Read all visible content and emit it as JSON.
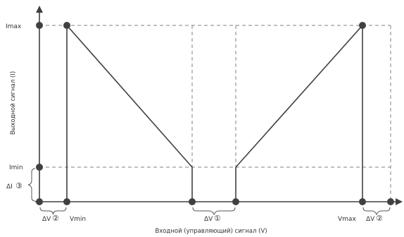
{
  "diagram": {
    "y_axis_label": "Выходной сигнал (I)",
    "x_axis_label": "Входной (управляющий) сигнал (V)",
    "labels": {
      "imax": "Imax",
      "imin": "Imin",
      "vmin": "Vmin",
      "vmax": "Vmax",
      "delta_v": "ΔV",
      "delta_i": "ΔI"
    },
    "markers": {
      "one": "①",
      "two": "②",
      "three": "③"
    },
    "colors": {
      "line": "#404040",
      "dashed": "#808080",
      "text": "#333333"
    }
  }
}
